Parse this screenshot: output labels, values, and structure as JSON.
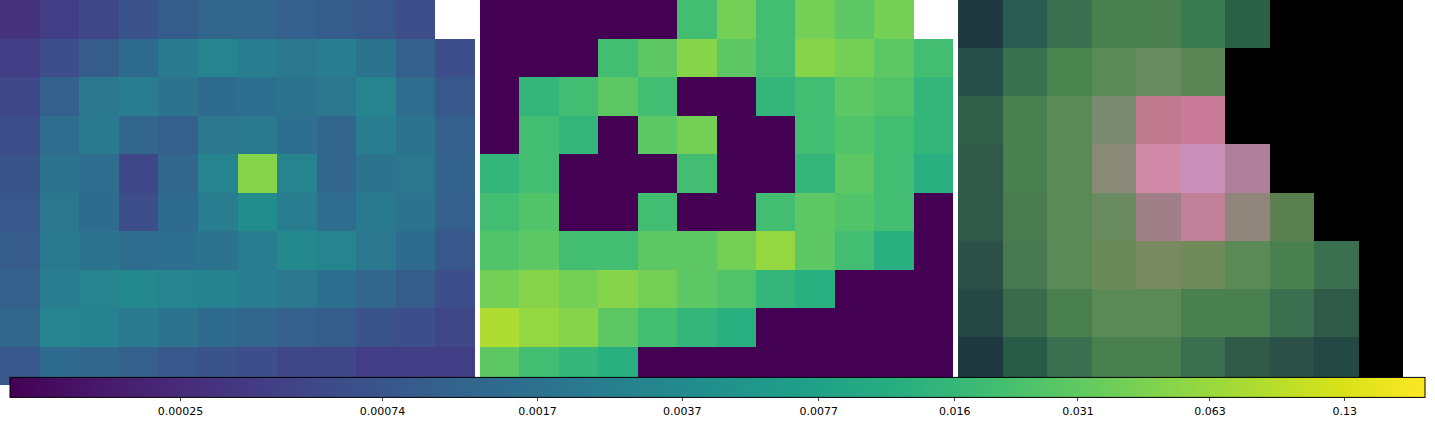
{
  "chart_data": {
    "type": "heatmap",
    "log": true,
    "tick_labels": false,
    "colorbar": {
      "range": [
        0.0001,
        0.2
      ],
      "ticks": [
        0.00025,
        0.00074,
        0.0017,
        0.0037,
        0.0077,
        0.016,
        0.031,
        0.063,
        0.13
      ]
    },
    "panels": [
      {
        "type": "heatmap",
        "cells": [
          [
            0.0003,
            0.0004,
            0.0005,
            0.0007,
            0.0009,
            0.0012,
            0.0012,
            0.001,
            0.0009,
            0.0008,
            0.0006,
            null
          ],
          [
            0.0004,
            0.0006,
            0.0009,
            0.0014,
            0.0022,
            0.003,
            0.0025,
            0.002,
            0.0024,
            0.0018,
            0.001,
            0.0006
          ],
          [
            0.0005,
            0.001,
            0.002,
            0.0025,
            0.0018,
            0.0014,
            0.0016,
            0.0018,
            0.002,
            0.003,
            0.0015,
            0.0008
          ],
          [
            0.0006,
            0.0015,
            0.0022,
            0.0012,
            0.001,
            0.002,
            0.0022,
            0.0016,
            0.0012,
            0.0025,
            0.0018,
            0.001
          ],
          [
            0.0007,
            0.0018,
            0.0015,
            0.0005,
            0.0012,
            0.003,
            0.05,
            0.003,
            0.0012,
            0.0018,
            0.002,
            0.0011
          ],
          [
            0.0008,
            0.002,
            0.0014,
            0.0006,
            0.0014,
            0.0025,
            0.004,
            0.0025,
            0.0015,
            0.0022,
            0.0018,
            0.001
          ],
          [
            0.0009,
            0.0022,
            0.0018,
            0.0015,
            0.0016,
            0.0018,
            0.0025,
            0.0035,
            0.003,
            0.002,
            0.0014,
            0.0008
          ],
          [
            0.001,
            0.0025,
            0.003,
            0.0035,
            0.003,
            0.0028,
            0.0024,
            0.002,
            0.0016,
            0.0012,
            0.0009,
            0.0006
          ],
          [
            0.0012,
            0.003,
            0.0028,
            0.0022,
            0.0018,
            0.0014,
            0.0012,
            0.001,
            0.0009,
            0.0007,
            0.0006,
            0.0005
          ],
          [
            0.0008,
            0.0014,
            0.0012,
            0.001,
            0.0008,
            0.0007,
            0.0006,
            0.0005,
            0.0005,
            0.0004,
            0.0004,
            0.0004
          ]
        ]
      },
      {
        "type": "heatmap",
        "cells": [
          [
            0.0001,
            0.0001,
            0.0001,
            0.0001,
            0.0001,
            0.02,
            0.04,
            0.02,
            0.04,
            0.03,
            0.04,
            null
          ],
          [
            0.0001,
            0.0001,
            0.0001,
            0.02,
            0.03,
            0.05,
            0.03,
            0.02,
            0.05,
            0.04,
            0.03,
            0.02
          ],
          [
            0.0001,
            0.015,
            0.02,
            0.03,
            0.02,
            0.0001,
            0.0001,
            0.015,
            0.02,
            0.03,
            0.025,
            0.015
          ],
          [
            0.0001,
            0.02,
            0.015,
            0.0001,
            0.03,
            0.04,
            0.0001,
            0.0001,
            0.02,
            0.025,
            0.02,
            0.015
          ],
          [
            0.015,
            0.02,
            0.0001,
            0.0001,
            0.0001,
            0.02,
            0.0001,
            0.0001,
            0.015,
            0.03,
            0.02,
            0.012
          ],
          [
            0.02,
            0.025,
            0.0001,
            0.0001,
            0.02,
            0.0001,
            0.0001,
            0.02,
            0.03,
            0.025,
            0.02,
            0.0001
          ],
          [
            0.025,
            0.03,
            0.02,
            0.02,
            0.03,
            0.03,
            0.04,
            0.06,
            0.03,
            0.02,
            0.012,
            0.0001
          ],
          [
            0.04,
            0.05,
            0.04,
            0.05,
            0.04,
            0.03,
            0.025,
            0.015,
            0.012,
            0.0001,
            0.0001,
            0.0001
          ],
          [
            0.08,
            0.06,
            0.05,
            0.03,
            0.02,
            0.015,
            0.012,
            0.0001,
            0.0001,
            0.0001,
            0.0001,
            0.0001
          ],
          [
            0.03,
            0.02,
            0.015,
            0.012,
            0.0001,
            0.0001,
            0.0001,
            0.0001,
            0.0001,
            0.0001,
            0.0001,
            0.0001
          ]
        ]
      },
      {
        "type": "image",
        "pixels": [
          [
            "#1e3a40",
            "#2a5a50",
            "#3a7050",
            "#4a8050",
            "#4a8050",
            "#3a7a50",
            "#2a6048",
            "#000000",
            "#000000",
            "#000000"
          ],
          [
            "#28504a",
            "#3a7250",
            "#4a8550",
            "#5a8a55",
            "#6a8a60",
            "#5a8555",
            "#000000",
            "#000000",
            "#000000",
            "#000000"
          ],
          [
            "#30604a",
            "#4a8050",
            "#5a8a55",
            "#7a8a70",
            "#c07a90",
            "#c87a98",
            "#000000",
            "#000000",
            "#000000",
            "#000000"
          ],
          [
            "#305a48",
            "#4a8050",
            "#5a8a55",
            "#8a8a78",
            "#d08aa8",
            "#c890b8",
            "#b0809a",
            "#000000",
            "#000000",
            "#000000"
          ],
          [
            "#305a48",
            "#4a7a50",
            "#5a8a55",
            "#6a8a60",
            "#a08088",
            "#c08098",
            "#90857a",
            "#5a8050",
            "#000000",
            "#000000"
          ],
          [
            "#2a5048",
            "#487850",
            "#5a8a55",
            "#6a8a58",
            "#7a8a60",
            "#708a5a",
            "#5a8a55",
            "#4a8050",
            "#3a7050",
            "#000000"
          ],
          [
            "#244844",
            "#3a6a4c",
            "#4a8050",
            "#5a8a55",
            "#5a8a55",
            "#4a8050",
            "#4a8050",
            "#3a7050",
            "#305a48",
            "#000000"
          ],
          [
            "#1e3a40",
            "#2a5a48",
            "#3a7050",
            "#4a8050",
            "#4a8050",
            "#3a7050",
            "#305a48",
            "#2a5048",
            "#244844",
            "#000000"
          ]
        ]
      }
    ]
  }
}
